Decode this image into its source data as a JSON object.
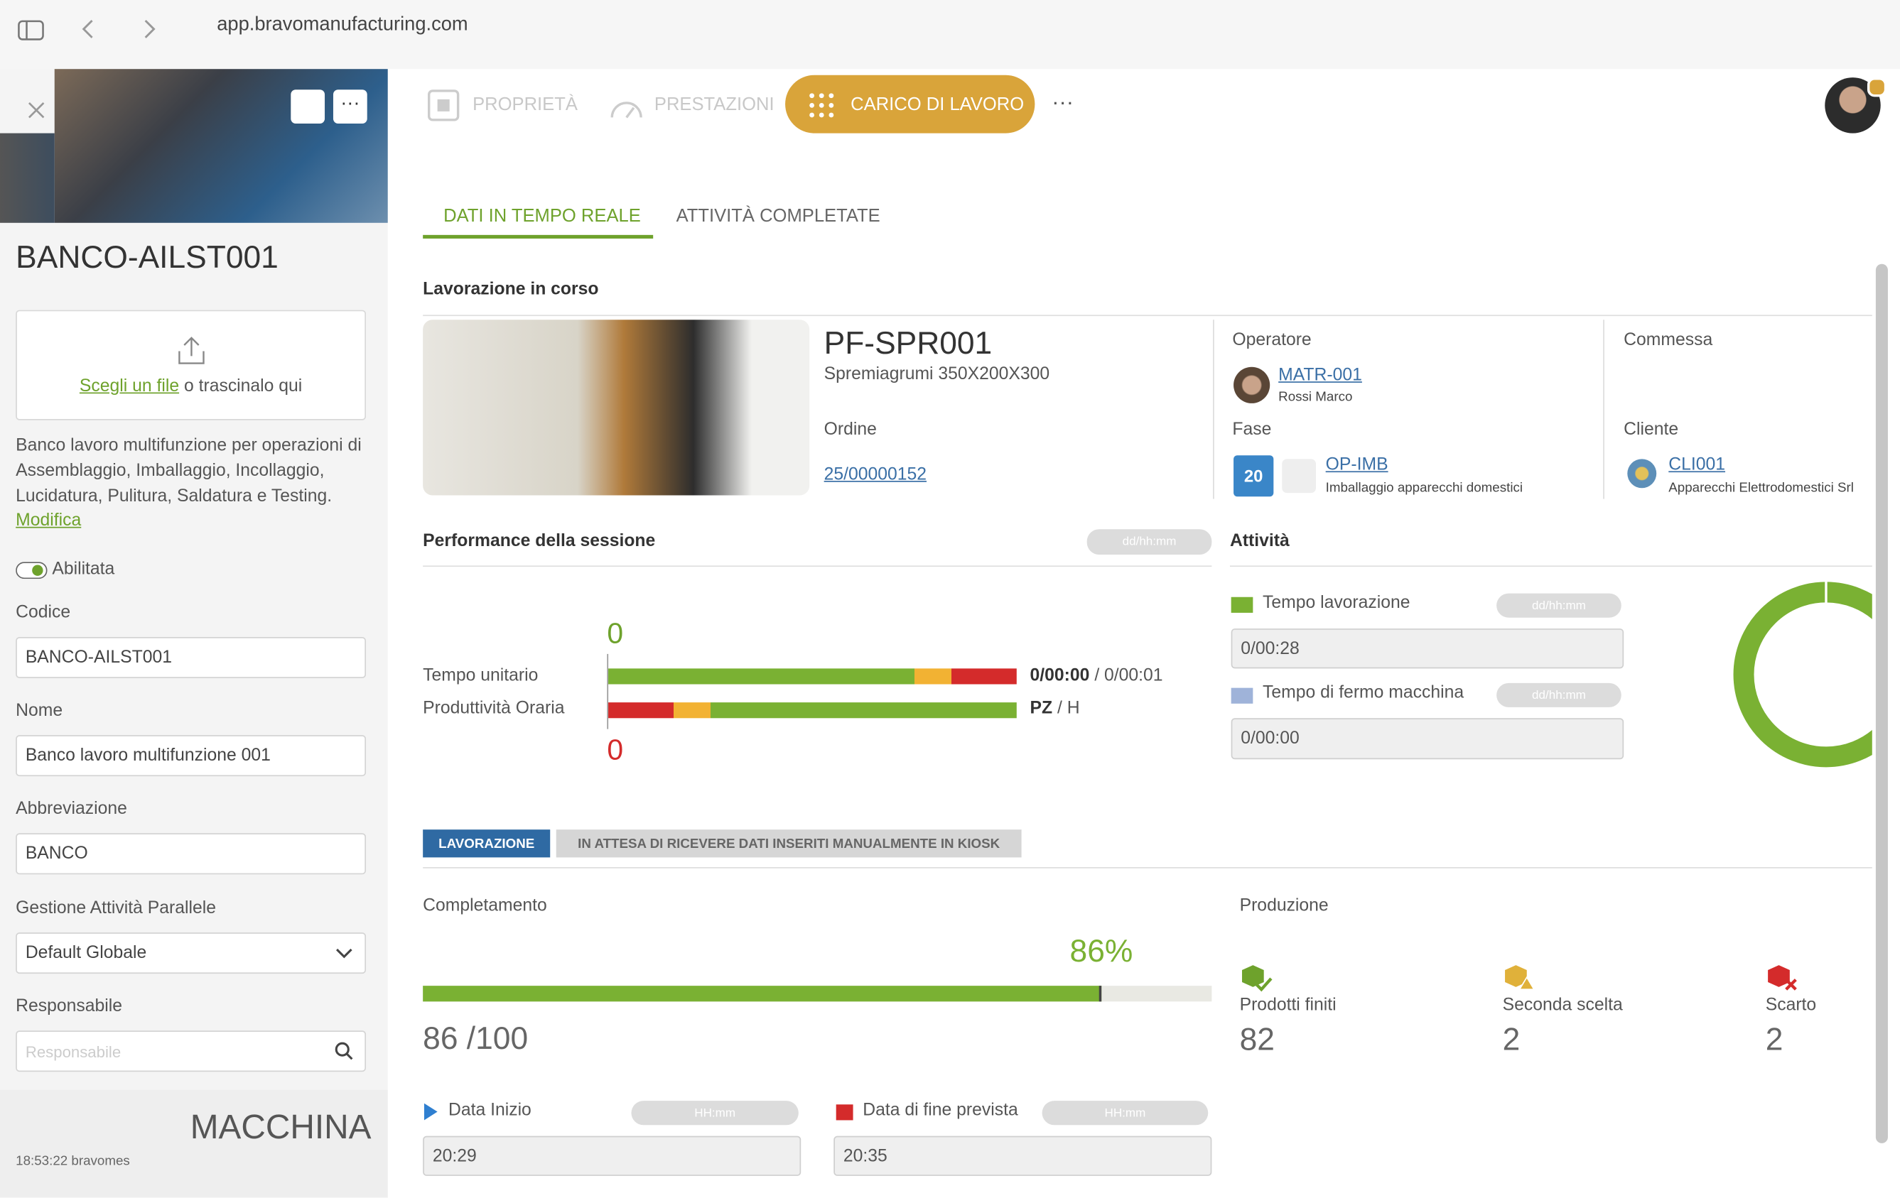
{
  "browser": {
    "url": "app.bravomanufacturing.com"
  },
  "sidebar": {
    "title": "BANCO-AILST001",
    "upload_link": "Scegli un file",
    "upload_text": "o trascinalo qui",
    "description": "Banco lavoro multifunzione per operazioni di Assemblaggio, Imballaggio, Incollaggio, Lucidatura, Pulitura, Saldatura e Testing.",
    "edit_link": "Modifica",
    "toggle_label": "Abilitata",
    "fields": [
      {
        "label": "Codice",
        "value": "BANCO-AILST001"
      },
      {
        "label": "Nome",
        "value": "Banco lavoro multifunzione 001"
      },
      {
        "label": "Abbreviazione",
        "value": "BANCO"
      },
      {
        "label": "Gestione Attività Parallele",
        "value": "Default Globale"
      },
      {
        "label": "Responsabile",
        "placeholder": "Responsabile"
      }
    ],
    "footer_label": "MACCHINA",
    "footer_time": "18:53:22 bravomes"
  },
  "tabs": [
    "PROPRIETÀ",
    "PRESTAZIONI",
    "CARICO DI LAVORO"
  ],
  "subtabs": [
    "DATI IN TEMPO REALE",
    "ATTIVITÀ COMPLETATE"
  ],
  "current": {
    "title": "Lavorazione in corso",
    "product_code": "PF-SPR001",
    "product_name": "Spremiagrumi 350X200X300",
    "order_label": "Ordine",
    "order": "25/00000152",
    "operator_label": "Operatore",
    "operator_code": "MATR-001",
    "operator_name": "Rossi Marco",
    "phase_label": "Fase",
    "phase_badge": "20",
    "phase_code": "OP-IMB",
    "phase_name": "Imballaggio apparecchi domestici",
    "job_label": "Commessa",
    "customer_label": "Cliente",
    "customer_code": "CLI001",
    "customer_name": "Apparecchi Elettrodomestici Srl"
  },
  "performance": {
    "title": "Performance della sessione",
    "format": "dd/hh:mm",
    "top_value": "0",
    "unit_time_label": "Tempo unitario",
    "unit_time_value": "0/00:00",
    "unit_time_target": "/ 0/00:01",
    "productivity_label": "Produttività Oraria",
    "productivity_unit": "PZ",
    "productivity_per": "/ H",
    "bottom_value": "0"
  },
  "activity": {
    "title": "Attività",
    "work_label": "Tempo lavorazione",
    "work_format": "dd/hh:mm",
    "work_value": "0/00:28",
    "stop_label": "Tempo di fermo macchina",
    "stop_format": "dd/hh:mm",
    "stop_value": "0/00:00"
  },
  "status": {
    "state": "LAVORAZIONE",
    "message": "IN ATTESA DI RICEVERE DATI INSERITI MANUALMENTE IN KIOSK"
  },
  "completion": {
    "label": "Completamento",
    "percent": "86%",
    "count": "86 /100"
  },
  "production": {
    "label": "Produzione",
    "items": [
      {
        "label": "Prodotti finiti",
        "value": "82"
      },
      {
        "label": "Seconda scelta",
        "value": "2"
      },
      {
        "label": "Scarto",
        "value": "2"
      }
    ]
  },
  "dates": {
    "start_label": "Data Inizio",
    "start_format": "HH:mm",
    "start_value": "20:29",
    "end_label": "Data di fine prevista",
    "end_format": "HH:mm",
    "end_value": "20:35"
  }
}
